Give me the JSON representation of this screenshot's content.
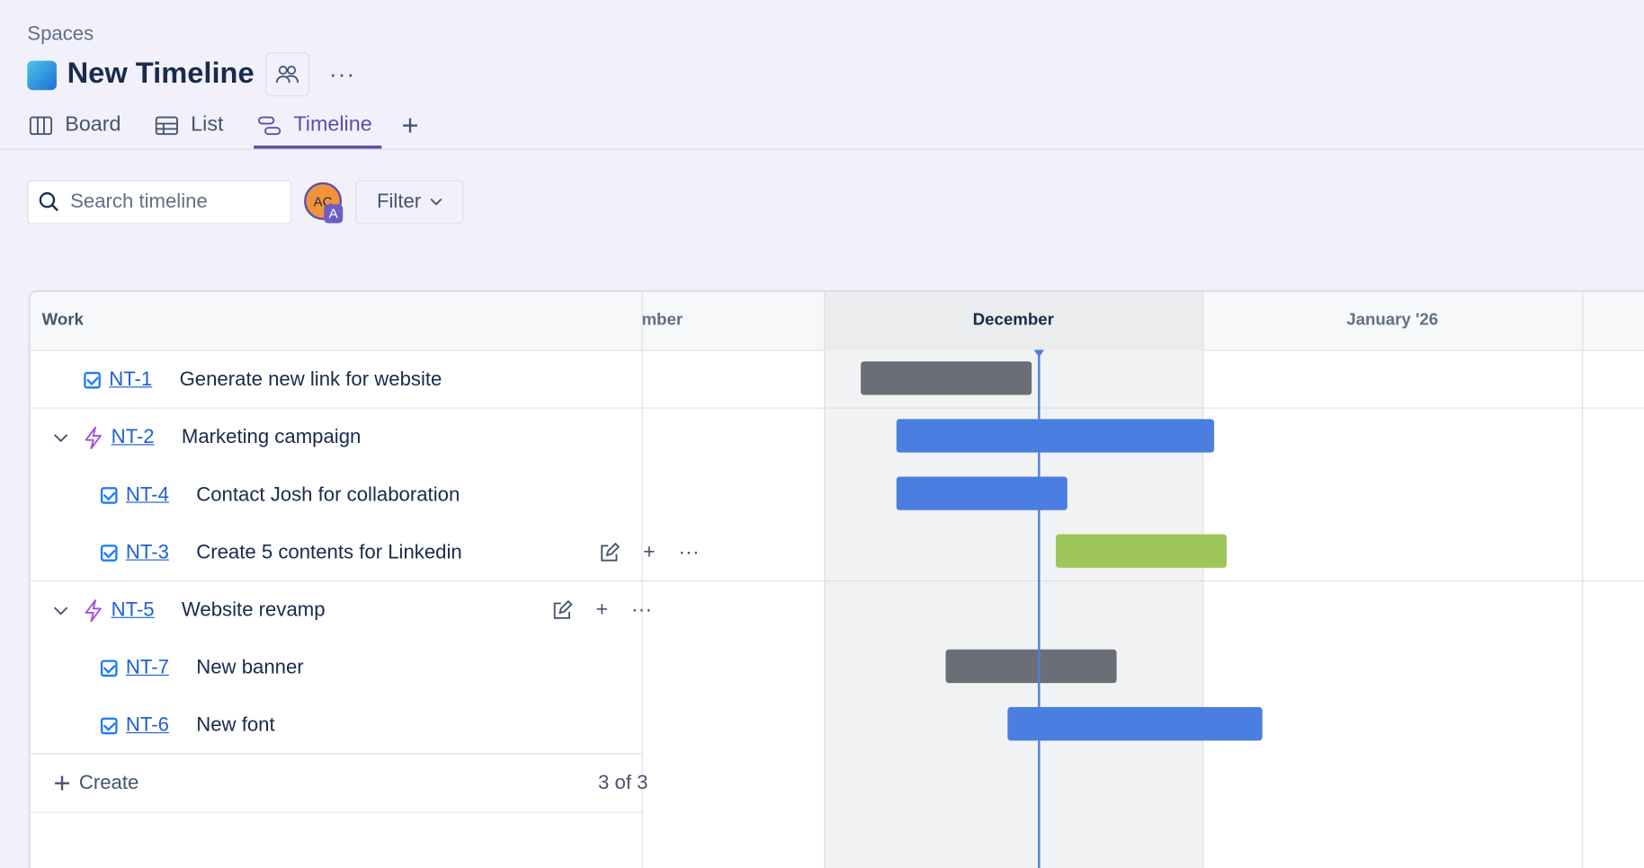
{
  "header": {
    "breadcrumb": "Spaces",
    "title": "New Timeline",
    "tabs": [
      "Board",
      "List",
      "Timeline"
    ]
  },
  "toolbar": {
    "search_placeholder": "Search timeline",
    "avatar": "AC",
    "avatar_badge": "A",
    "filter": "Filter"
  },
  "timeline": {
    "work_header": "Work",
    "months": [
      "mber",
      "December",
      "January '26"
    ],
    "rows": [
      {
        "key": "NT-1",
        "summary": "Generate new link for website"
      },
      {
        "key": "NT-2",
        "summary": "Marketing campaign"
      },
      {
        "key": "NT-4",
        "summary": "Contact Josh for collaboration"
      },
      {
        "key": "NT-3",
        "summary": "Create 5 contents for Linkedin"
      },
      {
        "key": "NT-5",
        "summary": "Website revamp"
      },
      {
        "key": "NT-7",
        "summary": "New banner"
      },
      {
        "key": "NT-6",
        "summary": "New font"
      }
    ],
    "create": "Create",
    "count": "3 of 3"
  }
}
